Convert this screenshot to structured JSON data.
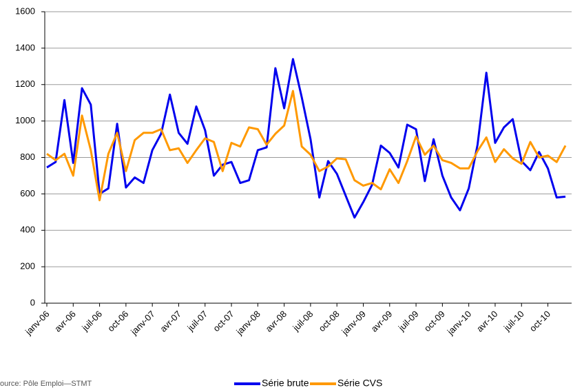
{
  "chart_data": {
    "type": "line",
    "categories": [
      "janv-06",
      null,
      null,
      "avr-06",
      null,
      null,
      "juil-06",
      null,
      null,
      "oct-06",
      null,
      null,
      "janv-07",
      null,
      null,
      "avr-07",
      null,
      null,
      "juil-07",
      null,
      null,
      "oct-07",
      null,
      null,
      "janv-08",
      null,
      null,
      "avr-08",
      null,
      null,
      "juil-08",
      null,
      null,
      "oct-08",
      null,
      null,
      "janv-09",
      null,
      null,
      "avr-09",
      null,
      null,
      "juil-09",
      null,
      null,
      "oct-09",
      null,
      null,
      "janv-10",
      null,
      null,
      "avr-10",
      null,
      null,
      "juil-10",
      null,
      null,
      "oct-10",
      null,
      null
    ],
    "series": [
      {
        "name": "Série brute",
        "color": "#0000ee",
        "values": [
          745,
          775,
          1115,
          770,
          1180,
          1090,
          600,
          630,
          985,
          635,
          690,
          660,
          840,
          930,
          1145,
          935,
          875,
          1080,
          950,
          700,
          760,
          775,
          660,
          675,
          840,
          855,
          1290,
          1070,
          1340,
          1130,
          900,
          580,
          780,
          710,
          590,
          470,
          555,
          650,
          865,
          825,
          745,
          980,
          955,
          670,
          900,
          700,
          580,
          510,
          630,
          870,
          1265,
          880,
          965,
          1010,
          780,
          730,
          830,
          740,
          580,
          585
        ]
      },
      {
        "name": "Série CVS",
        "color": "#ff9900",
        "values": [
          820,
          785,
          820,
          700,
          1030,
          840,
          565,
          820,
          935,
          725,
          895,
          935,
          935,
          955,
          840,
          850,
          770,
          840,
          905,
          885,
          725,
          880,
          860,
          965,
          955,
          870,
          930,
          975,
          1165,
          860,
          815,
          725,
          750,
          795,
          790,
          675,
          645,
          660,
          625,
          735,
          660,
          780,
          915,
          815,
          865,
          785,
          770,
          740,
          740,
          835,
          910,
          775,
          845,
          795,
          765,
          885,
          800,
          810,
          775,
          865
        ]
      }
    ],
    "ylim": [
      0,
      1600
    ],
    "yticks": [
      0,
      200,
      400,
      600,
      800,
      1000,
      1200,
      1400,
      1600
    ],
    "grid": true,
    "legend": "bottom",
    "source": "ource: Pôle Emploi—STMT"
  }
}
